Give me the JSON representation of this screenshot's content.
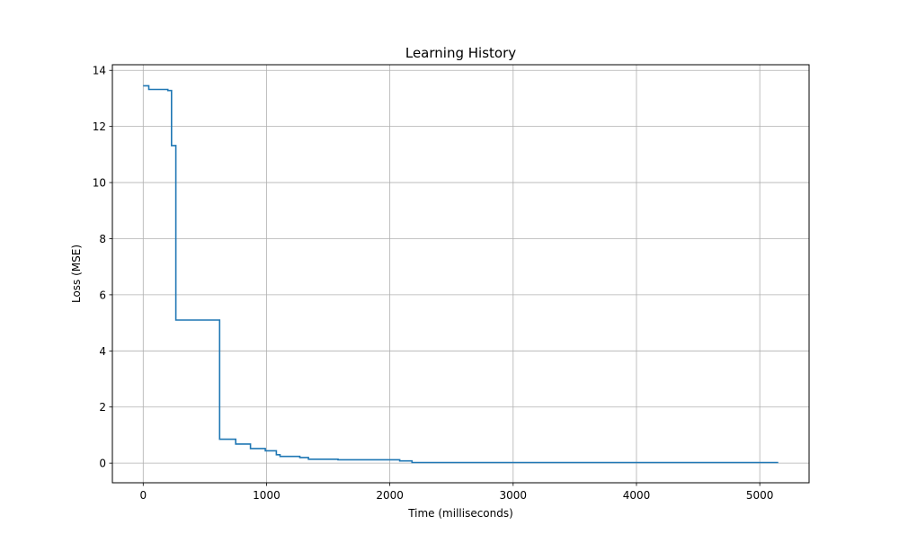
{
  "chart_data": {
    "type": "line",
    "title": "Learning History",
    "xlabel": "Time (milliseconds)",
    "ylabel": "Loss (MSE)",
    "xlim": [
      -250,
      5400
    ],
    "ylim": [
      -0.7,
      14.2
    ],
    "xticks": [
      0,
      1000,
      2000,
      3000,
      4000,
      5000
    ],
    "yticks": [
      0,
      2,
      4,
      6,
      8,
      10,
      12,
      14
    ],
    "grid": true,
    "step": "post",
    "series": [
      {
        "color": "#1f77b4",
        "x": [
          0,
          45,
          200,
          230,
          265,
          620,
          750,
          870,
          990,
          1080,
          1110,
          1270,
          1340,
          1580,
          2080,
          2180,
          5150
        ],
        "y": [
          13.45,
          13.32,
          13.28,
          11.32,
          5.1,
          0.85,
          0.68,
          0.52,
          0.44,
          0.3,
          0.24,
          0.2,
          0.14,
          0.12,
          0.08,
          0.02,
          0.02
        ]
      }
    ]
  }
}
